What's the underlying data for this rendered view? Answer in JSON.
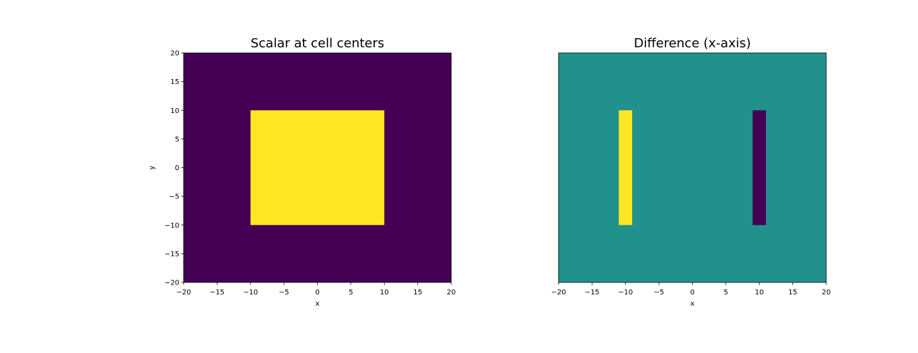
{
  "chart_data": [
    {
      "type": "heatmap",
      "title": "Scalar at cell centers",
      "xlabel": "x",
      "ylabel": "y",
      "xlim": [
        -20,
        20
      ],
      "ylim": [
        -20,
        20
      ],
      "xticks": [
        -20,
        -15,
        -10,
        -5,
        0,
        5,
        10,
        15,
        20
      ],
      "yticks": [
        -20,
        -15,
        -10,
        -5,
        0,
        5,
        10,
        15,
        20
      ],
      "show_yticks": true,
      "grid": false,
      "colormap": "viridis",
      "background_value": 0,
      "background_color": "#440154",
      "regions": [
        {
          "x": [
            -10,
            10
          ],
          "y": [
            -10,
            10
          ],
          "value": 1,
          "color": "#fde725"
        }
      ]
    },
    {
      "type": "heatmap",
      "title": "Difference (x-axis)",
      "xlabel": "x",
      "ylabel": "",
      "xlim": [
        -20,
        20
      ],
      "ylim": [
        -20,
        20
      ],
      "xticks": [
        -20,
        -15,
        -10,
        -5,
        0,
        5,
        10,
        15,
        20
      ],
      "yticks": [],
      "show_yticks": false,
      "grid": false,
      "colormap": "viridis",
      "background_value": 0,
      "background_color": "#21918c",
      "regions": [
        {
          "x": [
            -11,
            -9
          ],
          "y": [
            -10,
            10
          ],
          "value": 1,
          "color": "#fde725"
        },
        {
          "x": [
            9,
            11
          ],
          "y": [
            -10,
            10
          ],
          "value": -1,
          "color": "#440154"
        }
      ]
    }
  ]
}
